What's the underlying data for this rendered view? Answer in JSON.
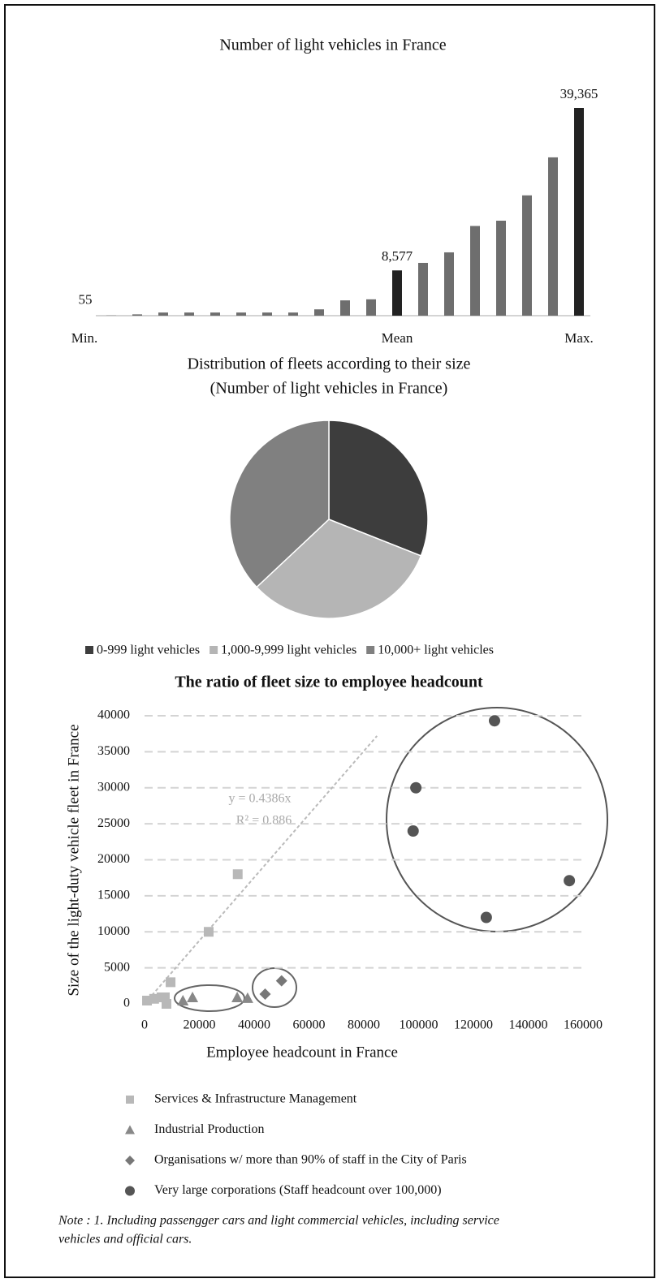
{
  "chart_data": [
    {
      "type": "bar",
      "title": "Number of light vehicles in France",
      "categories": [
        "Min.",
        null,
        null,
        null,
        null,
        null,
        null,
        null,
        null,
        null,
        null,
        "Mean",
        null,
        null,
        null,
        null,
        null,
        null,
        "Max."
      ],
      "values": [
        55,
        250,
        600,
        600,
        600,
        600,
        600,
        600,
        1200,
        2900,
        3100,
        8577,
        10000,
        12000,
        17000,
        18000,
        22800,
        30000,
        39365
      ],
      "value_labels": [
        "55",
        null,
        null,
        null,
        null,
        null,
        null,
        null,
        null,
        null,
        null,
        "8,577",
        null,
        null,
        null,
        null,
        null,
        null,
        "39,365"
      ],
      "colors": [
        "#6e6e6e",
        "#6e6e6e",
        "#6e6e6e",
        "#6e6e6e",
        "#6e6e6e",
        "#6e6e6e",
        "#6e6e6e",
        "#6e6e6e",
        "#6e6e6e",
        "#6e6e6e",
        "#6e6e6e",
        "#222222",
        "#6e6e6e",
        "#6e6e6e",
        "#6e6e6e",
        "#6e6e6e",
        "#6e6e6e",
        "#6e6e6e",
        "#222222"
      ]
    },
    {
      "type": "pie",
      "title": "Distribution of fleets according to their size",
      "subtitle": "(Number of light vehicles in France)",
      "categories": [
        "0-999 light vehicles",
        "1,000-9,999 light vehicles",
        "10,000+ light vehicles"
      ],
      "values": [
        31,
        32,
        37
      ],
      "colors": [
        "#3d3d3d",
        "#b5b5b5",
        "#808080"
      ],
      "legend": "bottom"
    },
    {
      "type": "scatter",
      "title": "The ratio of fleet size to employee headcount",
      "x_label": "Employee headcount in France",
      "y_label": "Size of the light-duty vehicle fleet in France",
      "xlim": [
        0,
        160000
      ],
      "ylim": [
        0,
        40000
      ],
      "xticks": [
        0,
        20000,
        40000,
        60000,
        80000,
        100000,
        120000,
        140000,
        160000
      ],
      "yticks": [
        0,
        5000,
        10000,
        15000,
        20000,
        25000,
        30000,
        35000,
        40000
      ],
      "grid": true,
      "trendline": {
        "slope": 0.4386,
        "equation": "y = 0.4386x",
        "r2": "R² = 0.886",
        "color": "#bbbbbb"
      },
      "series": [
        {
          "name": "Services & Infrastructure Management",
          "marker": "square",
          "color": "#b8b8b8",
          "x": [
            900,
            3500,
            6200,
            7400,
            8000,
            9500,
            23400,
            34000
          ],
          "values": [
            450,
            700,
            900,
            900,
            0,
            3000,
            10000,
            18000
          ]
        },
        {
          "name": "Industrial Production",
          "marker": "triangle",
          "color": "#888888",
          "x": [
            14000,
            17500,
            33800,
            37600
          ],
          "values": [
            450,
            900,
            900,
            800
          ]
        },
        {
          "name": "Organisations w/ more than 90% of staff  in the City of Paris",
          "marker": "diamond",
          "color": "#777777",
          "x": [
            44000,
            50000
          ],
          "values": [
            1350,
            3200
          ]
        },
        {
          "name": "Very large corporations (Staff headcount over 100,000)",
          "marker": "circle",
          "color": "#555555",
          "x": [
            127700,
            99000,
            98000,
            155000,
            124700
          ],
          "values": [
            39300,
            30000,
            24000,
            17100,
            12000
          ]
        }
      ]
    }
  ],
  "note": [
    "Note : 1. Including passengger cars and light commercial vehicles, including service",
    "vehicles and official cars."
  ]
}
